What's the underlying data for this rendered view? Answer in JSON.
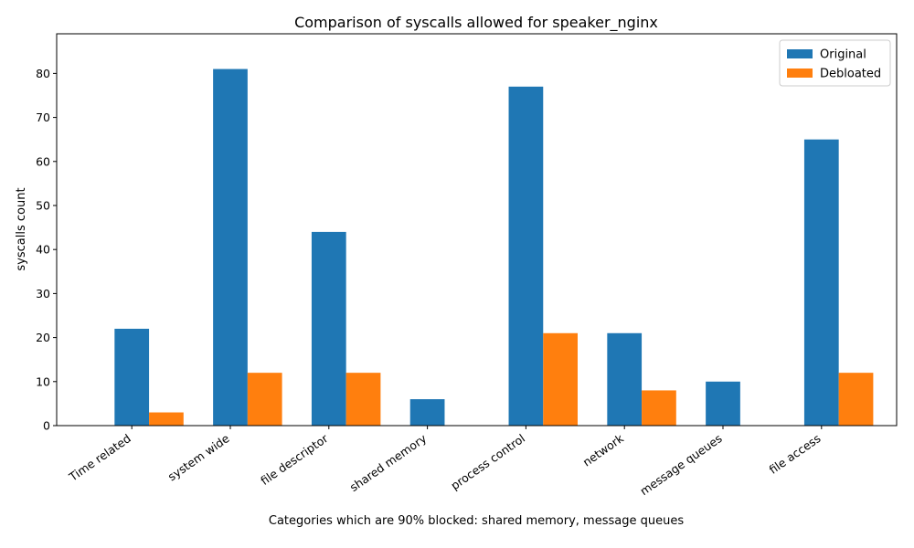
{
  "chart_data": {
    "type": "bar",
    "title": "Comparison of syscalls allowed for speaker_nginx",
    "xlabel": "Categories which are 90% blocked: shared memory, message queues",
    "ylabel": "syscalls count",
    "categories": [
      "Time related",
      "system wide",
      "file descriptor",
      "shared memory",
      "process control",
      "network",
      "message queues",
      "file access"
    ],
    "series": [
      {
        "name": "Original",
        "color": "#1f77b4",
        "values": [
          22,
          81,
          44,
          6,
          77,
          21,
          10,
          65
        ]
      },
      {
        "name": "Debloated",
        "color": "#ff7f0e",
        "values": [
          3,
          12,
          12,
          0,
          21,
          8,
          0,
          12
        ]
      }
    ],
    "ylim": [
      0,
      89
    ],
    "yticks": [
      0,
      10,
      20,
      30,
      40,
      50,
      60,
      70,
      80
    ],
    "grid": false,
    "legend_position": "top-right"
  }
}
